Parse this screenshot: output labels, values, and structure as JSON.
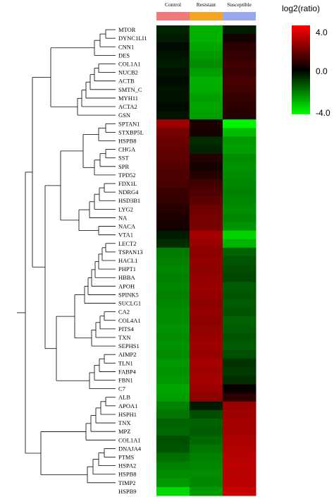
{
  "chart_data": {
    "type": "heatmap",
    "groups": [
      {
        "name": "Control",
        "color": "#f07a7a"
      },
      {
        "name": "Resistant",
        "color": "#f5a623"
      },
      {
        "name": "Susceptible",
        "color": "#9aa6ee"
      }
    ],
    "rows": [
      {
        "gene": "MTOR",
        "values": [
          -0.4,
          -2.6,
          -0.3
        ]
      },
      {
        "gene": "DYNC1LI1",
        "values": [
          -0.3,
          -2.6,
          0.2
        ]
      },
      {
        "gene": "CNN1",
        "values": [
          -0.1,
          -2.4,
          0.5
        ]
      },
      {
        "gene": "DES",
        "values": [
          -0.2,
          -2.2,
          0.6
        ]
      },
      {
        "gene": "COL1A1",
        "values": [
          -0.3,
          -2.0,
          0.8
        ]
      },
      {
        "gene": "NUCB2",
        "values": [
          -0.2,
          -2.3,
          0.7
        ]
      },
      {
        "gene": "ACTB",
        "values": [
          -0.1,
          -2.6,
          0.9
        ]
      },
      {
        "gene": "SMTN_C",
        "values": [
          -0.2,
          -2.5,
          0.8
        ]
      },
      {
        "gene": "MYH11",
        "values": [
          -0.2,
          -2.3,
          0.6
        ]
      },
      {
        "gene": "ACTA2",
        "values": [
          -0.1,
          -2.4,
          0.5
        ]
      },
      {
        "gene": "GSN",
        "values": [
          -0.2,
          -2.3,
          0.4
        ]
      },
      {
        "gene": "SPTAN1",
        "values": [
          2.3,
          0.3,
          -3.8
        ]
      },
      {
        "gene": "STXBP5L",
        "values": [
          1.6,
          0.2,
          -2.8
        ]
      },
      {
        "gene": "HSPB8",
        "values": [
          1.4,
          -0.5,
          -2.2
        ]
      },
      {
        "gene": "CHGA",
        "values": [
          1.3,
          -0.4,
          -2.3
        ]
      },
      {
        "gene": "SST",
        "values": [
          1.2,
          0.4,
          -2.0
        ]
      },
      {
        "gene": "SPR",
        "values": [
          1.1,
          0.2,
          -2.1
        ]
      },
      {
        "gene": "TPD52",
        "values": [
          1.0,
          0.4,
          -2.0
        ]
      },
      {
        "gene": "FDX1L",
        "values": [
          0.9,
          0.8,
          -1.9
        ]
      },
      {
        "gene": "NDRG4",
        "values": [
          0.7,
          1.0,
          -1.8
        ]
      },
      {
        "gene": "HSD3B1",
        "values": [
          0.6,
          1.2,
          -1.9
        ]
      },
      {
        "gene": "LYG2",
        "values": [
          0.4,
          1.5,
          -2.0
        ]
      },
      {
        "gene": "NA",
        "values": [
          0.3,
          1.6,
          -1.9
        ]
      },
      {
        "gene": "NACA",
        "values": [
          0.2,
          1.7,
          -2.1
        ]
      },
      {
        "gene": "VTA1",
        "values": [
          -0.3,
          2.4,
          -3.2
        ]
      },
      {
        "gene": "LECT2",
        "values": [
          -0.5,
          2.2,
          -2.7
        ]
      },
      {
        "gene": "TSPAN13",
        "values": [
          -1.7,
          2.0,
          -1.3
        ]
      },
      {
        "gene": "HACL1",
        "values": [
          -1.8,
          2.1,
          -1.1
        ]
      },
      {
        "gene": "PHPT1",
        "values": [
          -1.9,
          2.0,
          -1.0
        ]
      },
      {
        "gene": "HBBA",
        "values": [
          -1.8,
          2.1,
          -0.9
        ]
      },
      {
        "gene": "APOH",
        "values": [
          -1.9,
          2.2,
          -1.2
        ]
      },
      {
        "gene": "SPINK5",
        "values": [
          -1.8,
          2.1,
          -1.1
        ]
      },
      {
        "gene": "SUCLG1",
        "values": [
          -1.9,
          2.0,
          -1.2
        ]
      },
      {
        "gene": "CA2",
        "values": [
          -2.0,
          2.1,
          -1.1
        ]
      },
      {
        "gene": "COL4A1",
        "values": [
          -2.0,
          2.0,
          -1.3
        ]
      },
      {
        "gene": "PITS4",
        "values": [
          -2.1,
          2.1,
          -1.2
        ]
      },
      {
        "gene": "TXN",
        "values": [
          -2.0,
          2.2,
          -1.1
        ]
      },
      {
        "gene": "SEPHS1",
        "values": [
          -2.1,
          2.3,
          -1.2
        ]
      },
      {
        "gene": "AIMP2",
        "values": [
          -2.0,
          2.2,
          -1.0
        ]
      },
      {
        "gene": "TLN1",
        "values": [
          -2.2,
          2.4,
          -0.6
        ]
      },
      {
        "gene": "FABP4",
        "values": [
          -2.1,
          2.3,
          -0.7
        ]
      },
      {
        "gene": "FBN1",
        "values": [
          -2.2,
          2.4,
          -0.5
        ]
      },
      {
        "gene": "C7",
        "values": [
          -2.4,
          2.2,
          0.1
        ]
      },
      {
        "gene": "ALB",
        "values": [
          -2.3,
          2.0,
          0.5
        ]
      },
      {
        "gene": "APOA1",
        "values": [
          -1.8,
          -0.3,
          2.2
        ]
      },
      {
        "gene": "HSPH1",
        "values": [
          -1.6,
          -1.0,
          2.3
        ]
      },
      {
        "gene": "TNX",
        "values": [
          -1.3,
          -1.3,
          2.4
        ]
      },
      {
        "gene": "MPZ",
        "values": [
          -1.4,
          -1.2,
          2.4
        ]
      },
      {
        "gene": "COL1A1",
        "values": [
          -1.0,
          -1.4,
          2.5
        ]
      },
      {
        "gene": "DNAJA4",
        "values": [
          -1.1,
          -1.6,
          2.6
        ]
      },
      {
        "gene": "PTMS",
        "values": [
          -1.5,
          -1.8,
          2.7
        ]
      },
      {
        "gene": "HSPA2",
        "values": [
          -1.8,
          -1.9,
          2.8
        ]
      },
      {
        "gene": "HSPB8",
        "values": [
          -2.0,
          -2.0,
          2.7
        ]
      },
      {
        "gene": "TIMP2",
        "values": [
          -2.2,
          -1.9,
          2.8
        ]
      },
      {
        "gene": "HSPB9",
        "values": [
          -3.3,
          -2.2,
          3.0
        ]
      }
    ],
    "color_scale": {
      "title": "log2(ratio)",
      "min": -4.0,
      "mid": 0.0,
      "max": 4.0,
      "tick_labels": [
        "4.0",
        "0.0",
        "-4.0"
      ],
      "low_color": "#00ff00",
      "mid_color": "#000000",
      "high_color": "#ff0000"
    },
    "dendrogram": "row-clustering tree on left"
  }
}
